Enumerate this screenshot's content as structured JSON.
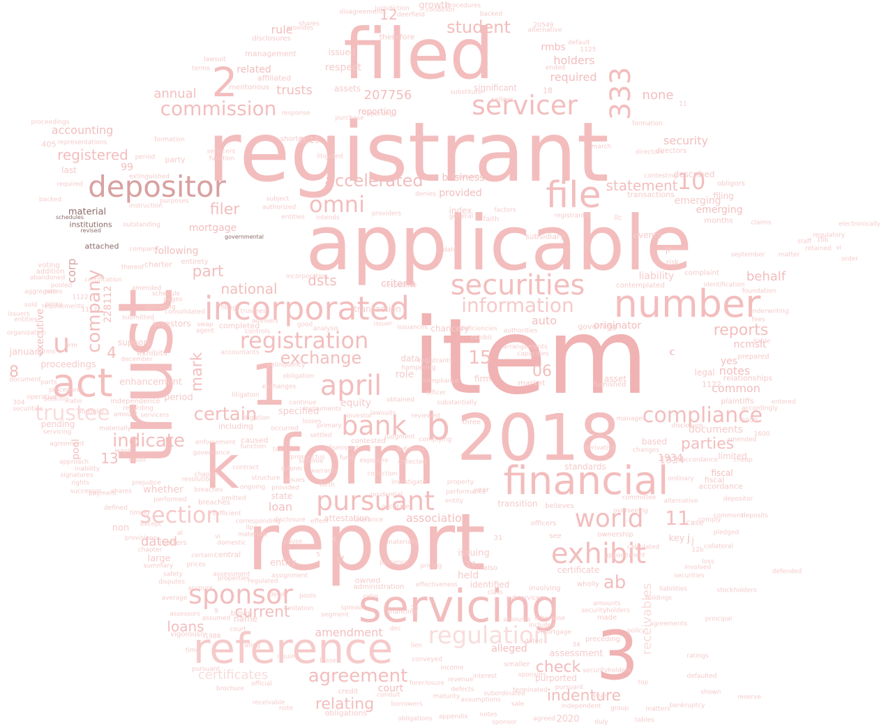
{
  "wordcloud": {
    "words": [
      "item",
      "registrant",
      "applicable",
      "report",
      "trust",
      "filed",
      "form",
      "2018",
      "k",
      "1",
      "3",
      "servicing",
      "reference",
      "financial",
      "incorporated",
      "number",
      "securities",
      "file",
      "depositor",
      "act",
      "pursuant",
      "exhibit",
      "april",
      "world",
      "bank",
      "sponsor",
      "compliance",
      "servicer",
      "registration",
      "information",
      "b",
      "2",
      "regulation",
      "indicate",
      "commission",
      "omni",
      "section",
      "agreement",
      "333",
      "exchange",
      "u",
      "trustee",
      "certain",
      "company",
      "accelerated",
      "student",
      "relating",
      "indenture",
      "10",
      "statement",
      "11",
      "ab",
      "reports",
      "current",
      "15",
      "filer",
      "parties",
      "check",
      "loans",
      "registered",
      "part",
      "mark",
      "association",
      "loan",
      "annual",
      "national",
      "check",
      "trusts",
      "12",
      "dated",
      "reporting",
      "dsts",
      "06",
      "none",
      "auto",
      "certificates",
      "criteria",
      "receivables",
      "8",
      "4",
      "13",
      "behalf",
      "related",
      "rule",
      "security",
      "emerging",
      "notes",
      "originator",
      "accounting",
      "common",
      "fiscal",
      "amendment",
      "alleged",
      "business",
      "provided",
      "mortgage",
      "following",
      "holders",
      "required",
      "rmbs",
      "corp",
      "executive",
      "ncmslt",
      "yes",
      "court",
      "j",
      "x",
      "c",
      "pool",
      "1934",
      "207756",
      "228112",
      "99"
    ]
  }
}
